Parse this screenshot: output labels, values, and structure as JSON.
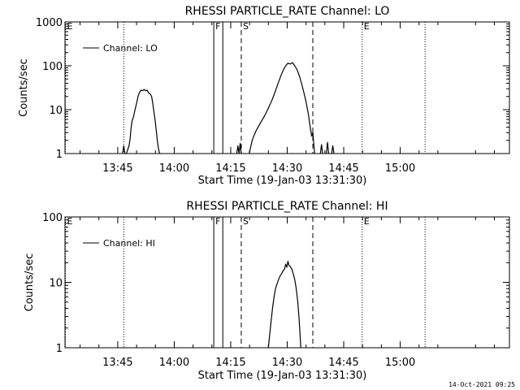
{
  "timestamp": "14-Oct-2021 09:25",
  "chart_data": [
    {
      "type": "line",
      "title": "RHESSI PARTICLE_RATE Channel: LO",
      "xlabel": "Start Time (19-Jan-03 13:31:30)",
      "ylabel": "Counts/sec",
      "x_unit": "minutes of day (13:45 = 825)",
      "xlim": [
        811,
        929
      ],
      "ylim": [
        1,
        1000
      ],
      "yscale": "log",
      "x_ticks": [
        {
          "value": 825,
          "label": "13:45"
        },
        {
          "value": 840,
          "label": "14:00"
        },
        {
          "value": 855,
          "label": "14:15"
        },
        {
          "value": 870,
          "label": "14:30"
        },
        {
          "value": 885,
          "label": "14:45"
        },
        {
          "value": 900,
          "label": "15:00"
        }
      ],
      "y_ticks": [
        {
          "value": 1,
          "label": "1"
        },
        {
          "value": 10,
          "label": "10"
        },
        {
          "value": 100,
          "label": "100"
        },
        {
          "value": 1000,
          "label": "1000"
        }
      ],
      "legend": {
        "label": "Channel: LO",
        "placement": "top-left"
      },
      "markers": [
        {
          "x": 811.1,
          "label": "E",
          "style": "dotted"
        },
        {
          "x": 826.6,
          "label": "",
          "style": "dotted"
        },
        {
          "x": 850.5,
          "label": "F",
          "style": "solid"
        },
        {
          "x": 852.9,
          "label": "",
          "style": "solid"
        },
        {
          "x": 857.8,
          "label": "S",
          "style": "dashed"
        },
        {
          "x": 876.8,
          "label": "",
          "style": "dashed"
        },
        {
          "x": 889.9,
          "label": "E",
          "style": "dotted"
        },
        {
          "x": 906.6,
          "label": "",
          "style": "dotted"
        }
      ],
      "series": [
        {
          "name": "Channel: LO",
          "segments": [
            [
              [
                826.3,
                1
              ],
              [
                826.6,
                1.5
              ],
              [
                826.9,
                1
              ],
              [
                827.3,
                1
              ],
              [
                827.6,
                1.2
              ],
              [
                828.0,
                1.5
              ],
              [
                828.3,
                2.2
              ],
              [
                828.5,
                3.5
              ],
              [
                828.8,
                5.5
              ],
              [
                829.2,
                7
              ],
              [
                829.6,
                10
              ],
              [
                830.0,
                14
              ],
              [
                830.4,
                20
              ],
              [
                830.8,
                25
              ],
              [
                831.2,
                28
              ],
              [
                831.6,
                27
              ],
              [
                832.0,
                29
              ],
              [
                832.4,
                27
              ],
              [
                832.8,
                28
              ],
              [
                833.2,
                24
              ],
              [
                833.6,
                23
              ],
              [
                834.0,
                20
              ],
              [
                834.3,
                14
              ],
              [
                834.6,
                9
              ],
              [
                834.9,
                6
              ],
              [
                835.2,
                3.5
              ],
              [
                835.5,
                2
              ],
              [
                835.8,
                1.3
              ],
              [
                836.1,
                1
              ]
            ],
            [
              [
                856.6,
                1
              ],
              [
                856.9,
                1.5
              ],
              [
                857.2,
                1
              ],
              [
                857.5,
                1.7
              ],
              [
                857.8,
                1
              ]
            ],
            [
              [
                859.9,
                1
              ],
              [
                860.3,
                1.4
              ],
              [
                860.7,
                2
              ],
              [
                861.2,
                2.6
              ],
              [
                861.8,
                3.4
              ],
              [
                862.4,
                4.2
              ],
              [
                863.0,
                5.2
              ],
              [
                863.6,
                6.3
              ],
              [
                864.2,
                7.8
              ],
              [
                864.8,
                10
              ],
              [
                865.4,
                13
              ],
              [
                866.0,
                17
              ],
              [
                866.6,
                23
              ],
              [
                867.2,
                32
              ],
              [
                867.8,
                45
              ],
              [
                868.4,
                62
              ],
              [
                869.0,
                82
              ],
              [
                869.6,
                100
              ],
              [
                870.2,
                115
              ],
              [
                870.8,
                110
              ],
              [
                871.4,
                118
              ],
              [
                872.0,
                100
              ],
              [
                872.6,
                82
              ],
              [
                873.2,
                60
              ],
              [
                873.8,
                40
              ],
              [
                874.4,
                25
              ],
              [
                875.0,
                15
              ],
              [
                875.6,
                8
              ],
              [
                876.1,
                4
              ],
              [
                876.5,
                2.5
              ],
              [
                876.8,
                3
              ],
              [
                877.1,
                1.5
              ],
              [
                877.3,
                1
              ]
            ],
            [
              [
                878.8,
                1
              ],
              [
                879.1,
                1.6
              ],
              [
                879.4,
                1
              ]
            ],
            [
              [
                880.4,
                1
              ],
              [
                880.7,
                1.8
              ],
              [
                881.0,
                1
              ]
            ],
            [
              [
                881.8,
                1
              ],
              [
                882.1,
                1.5
              ],
              [
                882.4,
                1
              ]
            ]
          ]
        }
      ]
    },
    {
      "type": "line",
      "title": "RHESSI PARTICLE_RATE Channel: HI",
      "xlabel": "Start Time (19-Jan-03 13:31:30)",
      "ylabel": "Counts/sec",
      "x_unit": "minutes of day (13:45 = 825)",
      "xlim": [
        811,
        929
      ],
      "ylim": [
        1,
        100
      ],
      "yscale": "log",
      "x_ticks": [
        {
          "value": 825,
          "label": "13:45"
        },
        {
          "value": 840,
          "label": "14:00"
        },
        {
          "value": 855,
          "label": "14:15"
        },
        {
          "value": 870,
          "label": "14:30"
        },
        {
          "value": 885,
          "label": "14:45"
        },
        {
          "value": 900,
          "label": "15:00"
        }
      ],
      "y_ticks": [
        {
          "value": 1,
          "label": "1"
        },
        {
          "value": 10,
          "label": "10"
        },
        {
          "value": 100,
          "label": "100"
        }
      ],
      "legend": {
        "label": "Channel: HI",
        "placement": "top-left"
      },
      "markers": [
        {
          "x": 811.1,
          "label": "E",
          "style": "dotted"
        },
        {
          "x": 826.6,
          "label": "",
          "style": "dotted"
        },
        {
          "x": 850.5,
          "label": "F",
          "style": "solid"
        },
        {
          "x": 852.9,
          "label": "",
          "style": "solid"
        },
        {
          "x": 857.8,
          "label": "S",
          "style": "dashed"
        },
        {
          "x": 876.8,
          "label": "",
          "style": "dashed"
        },
        {
          "x": 889.9,
          "label": "E",
          "style": "dotted"
        },
        {
          "x": 906.6,
          "label": "",
          "style": "dotted"
        }
      ],
      "series": [
        {
          "name": "Channel: HI",
          "segments": [
            [
              [
                865.0,
                1
              ],
              [
                865.3,
                1.5
              ],
              [
                865.7,
                2.5
              ],
              [
                866.1,
                4
              ],
              [
                866.5,
                6
              ],
              [
                866.9,
                8
              ],
              [
                867.3,
                9.5
              ],
              [
                867.7,
                11
              ],
              [
                868.1,
                12.5
              ],
              [
                868.5,
                13.5
              ],
              [
                868.9,
                15
              ],
              [
                869.3,
                16
              ],
              [
                869.6,
                19
              ],
              [
                869.9,
                17
              ],
              [
                870.2,
                21
              ],
              [
                870.5,
                18
              ],
              [
                870.8,
                17.5
              ],
              [
                871.2,
                16
              ],
              [
                871.6,
                13.5
              ],
              [
                872.0,
                11
              ],
              [
                872.4,
                8
              ],
              [
                872.8,
                5
              ],
              [
                873.1,
                3
              ],
              [
                873.4,
                1.6
              ],
              [
                873.6,
                1
              ]
            ]
          ]
        }
      ]
    }
  ]
}
